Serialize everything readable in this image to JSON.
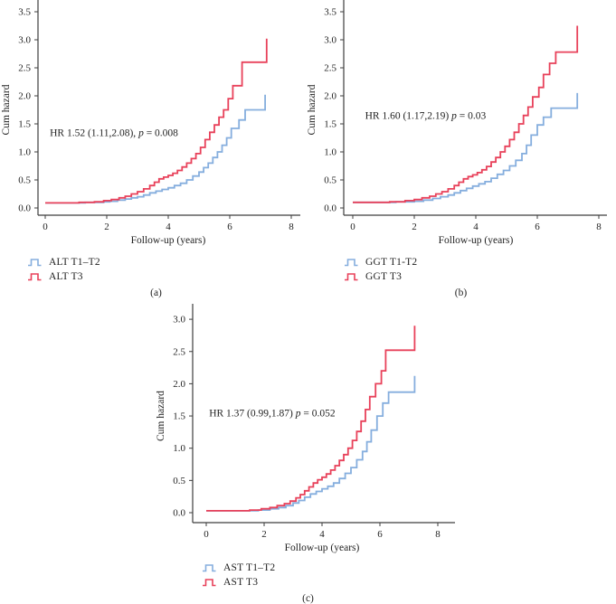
{
  "figure": {
    "colors": {
      "t12": "#85aede",
      "t3": "#e8415a",
      "axis": "#3d3d3d",
      "text": "#1f1f1f"
    }
  },
  "chart_data": [
    {
      "type": "line",
      "subtype": "step-cumulative-hazard",
      "panel": "(a)",
      "xlabel": "Follow-up (years)",
      "ylabel": "Cum hazard",
      "xlim": [
        0,
        8
      ],
      "ylim": [
        0,
        3.5
      ],
      "xticks": [
        "0",
        "2",
        "4",
        "6",
        "8"
      ],
      "yticks": [
        "0.0",
        "0.5",
        "1.0",
        "1.5",
        "2.0",
        "2.5",
        "3.0",
        "3.5"
      ],
      "grid": false,
      "legend_position": "below-left",
      "annotation": {
        "full": "HR 1.52 (1.11,2.08), p = 0.008",
        "before_p": "HR 1.52 (1.11,2.08), ",
        "p_symbol": "p",
        "after_p": " = 0.008",
        "x": 0.15,
        "y": 1.35
      },
      "series": [
        {
          "name": "ALT T1–T2",
          "color_key": "t12",
          "points": [
            [
              0,
              0.09
            ],
            [
              1.3,
              0.1
            ],
            [
              1.9,
              0.11
            ],
            [
              2.1,
              0.12
            ],
            [
              2.35,
              0.14
            ],
            [
              2.6,
              0.16
            ],
            [
              2.8,
              0.18
            ],
            [
              3.0,
              0.2
            ],
            [
              3.2,
              0.23
            ],
            [
              3.4,
              0.27
            ],
            [
              3.6,
              0.3
            ],
            [
              3.8,
              0.33
            ],
            [
              4.0,
              0.36
            ],
            [
              4.2,
              0.4
            ],
            [
              4.4,
              0.44
            ],
            [
              4.6,
              0.5
            ],
            [
              4.8,
              0.57
            ],
            [
              5.0,
              0.64
            ],
            [
              5.15,
              0.72
            ],
            [
              5.3,
              0.8
            ],
            [
              5.45,
              0.9
            ],
            [
              5.6,
              1.0
            ],
            [
              5.75,
              1.12
            ],
            [
              5.9,
              1.25
            ],
            [
              6.05,
              1.42
            ],
            [
              6.3,
              1.57
            ],
            [
              6.5,
              1.75
            ],
            [
              7.15,
              2.02
            ]
          ]
        },
        {
          "name": "ALT T3",
          "color_key": "t3",
          "points": [
            [
              0,
              0.09
            ],
            [
              1.1,
              0.1
            ],
            [
              1.6,
              0.11
            ],
            [
              1.9,
              0.13
            ],
            [
              2.15,
              0.15
            ],
            [
              2.4,
              0.18
            ],
            [
              2.6,
              0.21
            ],
            [
              2.8,
              0.25
            ],
            [
              3.0,
              0.29
            ],
            [
              3.2,
              0.34
            ],
            [
              3.4,
              0.4
            ],
            [
              3.55,
              0.46
            ],
            [
              3.7,
              0.52
            ],
            [
              3.85,
              0.55
            ],
            [
              4.0,
              0.58
            ],
            [
              4.15,
              0.62
            ],
            [
              4.3,
              0.67
            ],
            [
              4.45,
              0.73
            ],
            [
              4.6,
              0.8
            ],
            [
              4.75,
              0.88
            ],
            [
              4.9,
              0.97
            ],
            [
              5.05,
              1.08
            ],
            [
              5.2,
              1.22
            ],
            [
              5.35,
              1.35
            ],
            [
              5.5,
              1.48
            ],
            [
              5.65,
              1.62
            ],
            [
              5.8,
              1.75
            ],
            [
              5.95,
              1.95
            ],
            [
              6.1,
              2.18
            ],
            [
              6.4,
              2.6
            ],
            [
              7.2,
              3.02
            ]
          ]
        }
      ]
    },
    {
      "type": "line",
      "subtype": "step-cumulative-hazard",
      "panel": "(b)",
      "xlabel": "Follow-up (years)",
      "ylabel": "Cum hazard",
      "xlim": [
        0,
        8
      ],
      "ylim": [
        0,
        3.5
      ],
      "xticks": [
        "0",
        "2",
        "4",
        "6",
        "8"
      ],
      "yticks": [
        "0.0",
        "0.5",
        "1.0",
        "1.5",
        "2.0",
        "2.5",
        "3.0",
        "3.5"
      ],
      "grid": false,
      "legend_position": "below-left",
      "annotation": {
        "full": "HR 1.60 (1.17,2.19) p = 0.03",
        "before_p": "HR 1.60 (1.17,2.19) ",
        "p_symbol": "p",
        "after_p": " = 0.03",
        "x": 0.4,
        "y": 1.65
      },
      "series": [
        {
          "name": "GGT T1-T2",
          "color_key": "t12",
          "points": [
            [
              0,
              0.1
            ],
            [
              1.4,
              0.11
            ],
            [
              2.0,
              0.12
            ],
            [
              2.3,
              0.14
            ],
            [
              2.6,
              0.17
            ],
            [
              2.85,
              0.2
            ],
            [
              3.1,
              0.23
            ],
            [
              3.3,
              0.27
            ],
            [
              3.5,
              0.31
            ],
            [
              3.7,
              0.35
            ],
            [
              3.9,
              0.39
            ],
            [
              4.1,
              0.43
            ],
            [
              4.3,
              0.47
            ],
            [
              4.5,
              0.53
            ],
            [
              4.7,
              0.6
            ],
            [
              4.9,
              0.67
            ],
            [
              5.1,
              0.75
            ],
            [
              5.3,
              0.85
            ],
            [
              5.5,
              0.97
            ],
            [
              5.65,
              1.12
            ],
            [
              5.8,
              1.3
            ],
            [
              6.0,
              1.48
            ],
            [
              6.2,
              1.62
            ],
            [
              6.45,
              1.78
            ],
            [
              7.3,
              2.05
            ]
          ]
        },
        {
          "name": "GGT T3",
          "color_key": "t3",
          "points": [
            [
              0,
              0.1
            ],
            [
              1.2,
              0.11
            ],
            [
              1.7,
              0.13
            ],
            [
              2.0,
              0.15
            ],
            [
              2.25,
              0.18
            ],
            [
              2.5,
              0.21
            ],
            [
              2.7,
              0.25
            ],
            [
              2.9,
              0.29
            ],
            [
              3.1,
              0.34
            ],
            [
              3.3,
              0.4
            ],
            [
              3.45,
              0.46
            ],
            [
              3.6,
              0.52
            ],
            [
              3.75,
              0.56
            ],
            [
              3.9,
              0.59
            ],
            [
              4.05,
              0.63
            ],
            [
              4.2,
              0.68
            ],
            [
              4.35,
              0.74
            ],
            [
              4.5,
              0.82
            ],
            [
              4.65,
              0.9
            ],
            [
              4.8,
              1.0
            ],
            [
              4.95,
              1.1
            ],
            [
              5.1,
              1.22
            ],
            [
              5.25,
              1.35
            ],
            [
              5.4,
              1.5
            ],
            [
              5.55,
              1.65
            ],
            [
              5.7,
              1.8
            ],
            [
              5.85,
              1.98
            ],
            [
              6.05,
              2.15
            ],
            [
              6.2,
              2.38
            ],
            [
              6.4,
              2.58
            ],
            [
              6.6,
              2.78
            ],
            [
              7.3,
              3.25
            ]
          ]
        }
      ]
    },
    {
      "type": "line",
      "subtype": "step-cumulative-hazard",
      "panel": "(c)",
      "xlabel": "Follow-up (years)",
      "ylabel": "Cum hazard",
      "xlim": [
        0,
        8
      ],
      "ylim": [
        0,
        3.0
      ],
      "xticks": [
        "0",
        "2",
        "4",
        "6",
        "8"
      ],
      "yticks": [
        "0.0",
        "0.5",
        "1.0",
        "1.5",
        "2.0",
        "2.5",
        "3.0"
      ],
      "grid": false,
      "legend_position": "below-left",
      "annotation": {
        "full": "HR 1.37 (0.99,1.87) p = 0.052",
        "before_p": "HR 1.37 (0.99,1.87) ",
        "p_symbol": "p",
        "after_p": " = 0.052",
        "x": 0.1,
        "y": 1.55
      },
      "series": [
        {
          "name": "AST T1–T2",
          "color_key": "t12",
          "points": [
            [
              0,
              0.03
            ],
            [
              1.8,
              0.04
            ],
            [
              2.2,
              0.06
            ],
            [
              2.5,
              0.08
            ],
            [
              2.75,
              0.11
            ],
            [
              3.0,
              0.15
            ],
            [
              3.2,
              0.19
            ],
            [
              3.4,
              0.24
            ],
            [
              3.6,
              0.29
            ],
            [
              3.8,
              0.33
            ],
            [
              4.0,
              0.37
            ],
            [
              4.2,
              0.41
            ],
            [
              4.4,
              0.46
            ],
            [
              4.6,
              0.53
            ],
            [
              4.8,
              0.61
            ],
            [
              5.0,
              0.7
            ],
            [
              5.2,
              0.82
            ],
            [
              5.4,
              0.95
            ],
            [
              5.55,
              1.1
            ],
            [
              5.7,
              1.28
            ],
            [
              5.9,
              1.5
            ],
            [
              6.1,
              1.7
            ],
            [
              6.3,
              1.87
            ],
            [
              7.2,
              2.12
            ]
          ]
        },
        {
          "name": "AST T3",
          "color_key": "t3",
          "points": [
            [
              0,
              0.03
            ],
            [
              1.5,
              0.04
            ],
            [
              1.9,
              0.06
            ],
            [
              2.2,
              0.08
            ],
            [
              2.45,
              0.11
            ],
            [
              2.7,
              0.14
            ],
            [
              2.9,
              0.18
            ],
            [
              3.1,
              0.23
            ],
            [
              3.25,
              0.28
            ],
            [
              3.4,
              0.34
            ],
            [
              3.55,
              0.4
            ],
            [
              3.7,
              0.46
            ],
            [
              3.85,
              0.51
            ],
            [
              4.0,
              0.55
            ],
            [
              4.15,
              0.6
            ],
            [
              4.3,
              0.66
            ],
            [
              4.45,
              0.73
            ],
            [
              4.6,
              0.81
            ],
            [
              4.75,
              0.9
            ],
            [
              4.9,
              1.0
            ],
            [
              5.05,
              1.12
            ],
            [
              5.2,
              1.26
            ],
            [
              5.35,
              1.42
            ],
            [
              5.5,
              1.6
            ],
            [
              5.65,
              1.8
            ],
            [
              5.85,
              2.0
            ],
            [
              6.05,
              2.2
            ],
            [
              6.2,
              2.52
            ],
            [
              7.2,
              2.9
            ]
          ]
        }
      ]
    }
  ]
}
